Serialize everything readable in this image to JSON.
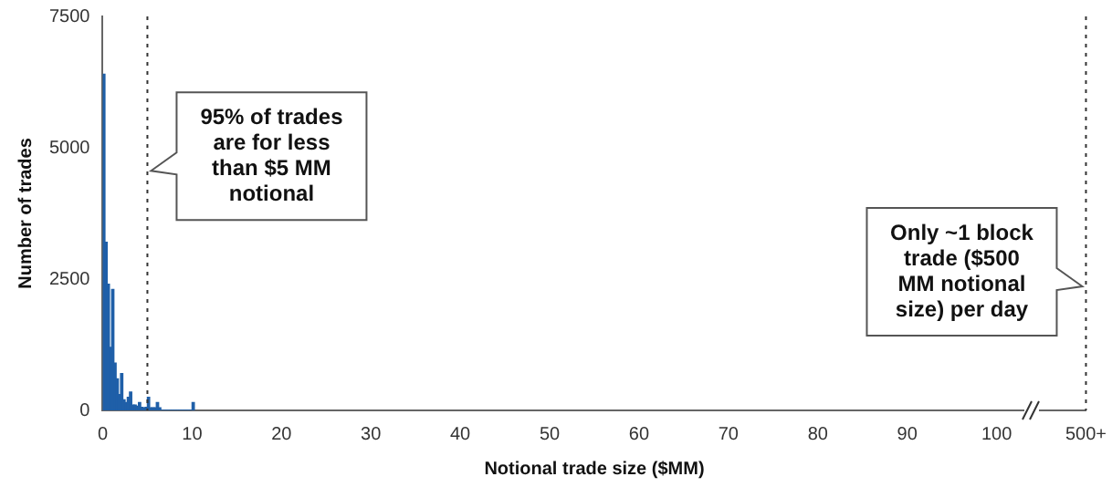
{
  "chart_data": {
    "type": "histogram",
    "xlabel": "Notional trade size ($MM)",
    "ylabel": "Number of trades",
    "bins": [
      0,
      0.25,
      0.5,
      0.75,
      1,
      1.25,
      1.5,
      1.75,
      2,
      2.25,
      2.5,
      2.75,
      3,
      3.25,
      3.5,
      3.75,
      4,
      4.25,
      4.5,
      4.75,
      5,
      5.25,
      5.5,
      5.75,
      6,
      6.25,
      6.5,
      6.75,
      7,
      7.25,
      7.5,
      7.75,
      8,
      8.25,
      8.5,
      8.75,
      9,
      9.25,
      9.5,
      9.75,
      10,
      10.25
    ],
    "values": [
      6400,
      3200,
      2400,
      1200,
      2300,
      900,
      600,
      300,
      700,
      200,
      150,
      250,
      350,
      100,
      100,
      80,
      150,
      60,
      50,
      60,
      250,
      50,
      50,
      50,
      150,
      50,
      0,
      0,
      0,
      0,
      0,
      0,
      0,
      0,
      0,
      0,
      0,
      0,
      0,
      0,
      150
    ],
    "color": "#1f5fa8",
    "xlim": [
      0,
      110
    ],
    "xticks": [
      0,
      10,
      20,
      30,
      40,
      50,
      60,
      70,
      80,
      90,
      100,
      {
        "value": 110,
        "label": "500+"
      }
    ],
    "ylim": [
      0,
      7500
    ],
    "yticks": [
      0,
      2500,
      5000,
      7500
    ],
    "grid": false,
    "legend": false,
    "ref_lines": [
      {
        "axis": "x",
        "value": 5,
        "line_style": "dotted",
        "color": "#333333"
      },
      {
        "axis": "x",
        "value": 110,
        "line_style": "dotted",
        "color": "#333333"
      }
    ],
    "annotations": [
      {
        "text": "95% of trades are for less than $5 MM notional",
        "x": 5,
        "y": 4700
      },
      {
        "text": "Only ~1 block trade ($500 MM notional size) per day",
        "x": 110,
        "y": 2500
      }
    ]
  }
}
